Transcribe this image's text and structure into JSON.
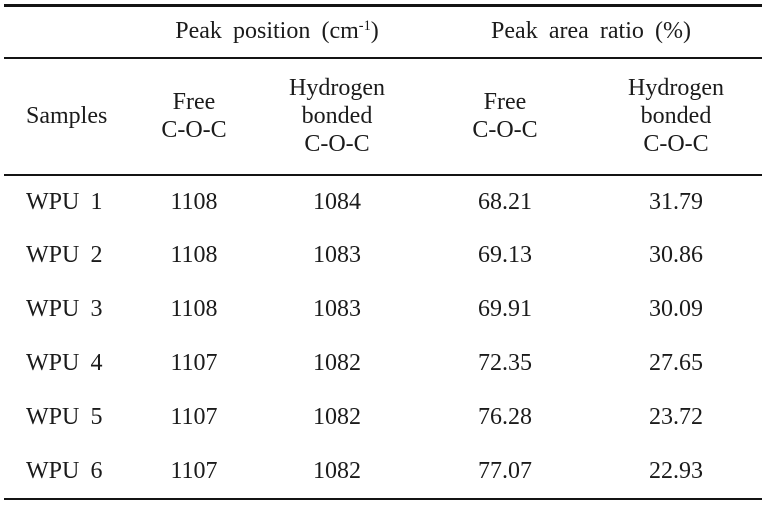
{
  "table": {
    "group_headers": {
      "peak_position": {
        "pre": "Peak position (cm",
        "sup": "-1",
        "post": ")"
      },
      "peak_area": "Peak area ratio (%)"
    },
    "headers": {
      "samples": "Samples",
      "free_line1": "Free",
      "free_line2": "C-O-C",
      "hb_line1": "Hydrogen",
      "hb_line2": "bonded",
      "hb_line3": "C-O-C"
    },
    "rows": [
      {
        "sample": "WPU 1",
        "free_pos": "1108",
        "hb_pos": "1084",
        "free_area": "68.21",
        "hb_area": "31.79"
      },
      {
        "sample": "WPU 2",
        "free_pos": "1108",
        "hb_pos": "1083",
        "free_area": "69.13",
        "hb_area": "30.86"
      },
      {
        "sample": "WPU 3",
        "free_pos": "1108",
        "hb_pos": "1083",
        "free_area": "69.91",
        "hb_area": "30.09"
      },
      {
        "sample": "WPU 4",
        "free_pos": "1107",
        "hb_pos": "1082",
        "free_area": "72.35",
        "hb_area": "27.65"
      },
      {
        "sample": "WPU 5",
        "free_pos": "1107",
        "hb_pos": "1082",
        "free_area": "76.28",
        "hb_area": "23.72"
      },
      {
        "sample": "WPU 6",
        "free_pos": "1107",
        "hb_pos": "1082",
        "free_area": "77.07",
        "hb_area": "22.93"
      }
    ],
    "colors": {
      "rule": "#141414",
      "text": "#1b1b1b",
      "background": "#ffffff"
    }
  }
}
